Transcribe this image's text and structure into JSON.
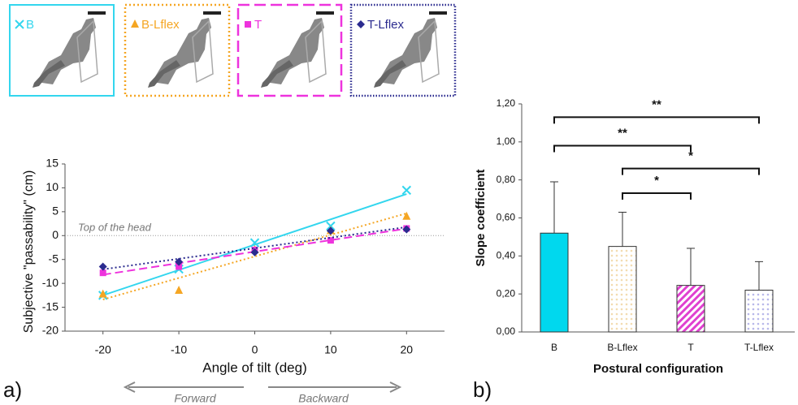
{
  "chart_data": [
    {
      "type": "scatter",
      "panel_label": "a)",
      "x": [
        -20,
        -10,
        0,
        10,
        20
      ],
      "series": [
        {
          "name": "B",
          "color": "#33d6ee",
          "marker": "x",
          "line_style": "solid",
          "values": [
            -12.5,
            -7,
            -1.5,
            2,
            9.5
          ]
        },
        {
          "name": "B-Lflex",
          "color": "#f5a623",
          "marker": "triangle",
          "line_style": "dotted",
          "values": [
            -12.3,
            -11.5,
            -3,
            1,
            4
          ]
        },
        {
          "name": "T",
          "color": "#ee33dd",
          "marker": "square",
          "line_style": "dashed",
          "values": [
            -7.8,
            -6.5,
            -3,
            -1,
            1.5
          ]
        },
        {
          "name": "T-Lflex",
          "color": "#2b2b8f",
          "marker": "diamond",
          "line_style": "dotted",
          "values": [
            -6.5,
            -5.5,
            -3.5,
            1,
            1.3
          ]
        }
      ],
      "xlim": [
        -25,
        25
      ],
      "xticks": [
        -20,
        -10,
        0,
        10,
        20
      ],
      "ylim": [
        -20,
        15
      ],
      "yticks": [
        -20,
        -15,
        -10,
        -5,
        0,
        5,
        10,
        15
      ],
      "xlabel": "Angle of tilt (deg)",
      "ylabel": "Subjective \"passability\" (cm)",
      "reference_line": {
        "value": 0,
        "label": "Top of the head"
      },
      "arrows": [
        "Forward",
        "Backward"
      ]
    },
    {
      "type": "bar",
      "panel_label": "b)",
      "categories": [
        "B",
        "B-Lflex",
        "T",
        "T-Lflex"
      ],
      "values": [
        0.52,
        0.45,
        0.245,
        0.22
      ],
      "errors": [
        0.27,
        0.18,
        0.195,
        0.15
      ],
      "colors": [
        "#00d8ee",
        "#f3dcb0",
        "#e040d0",
        "#b8b8ea"
      ],
      "fills": [
        "solid",
        "dots",
        "hatch",
        "dots"
      ],
      "ylim": [
        0,
        1.2
      ],
      "yticks": [
        {
          "value": 0,
          "label": "0,00"
        },
        {
          "value": 0.2,
          "label": "0,20"
        },
        {
          "value": 0.4,
          "label": "0,40"
        },
        {
          "value": 0.6,
          "label": "0,60"
        },
        {
          "value": 0.8,
          "label": "0,80"
        },
        {
          "value": 1,
          "label": "1,00"
        },
        {
          "value": 1.2,
          "label": "1,20"
        }
      ],
      "xlabel": "Postural configuration",
      "ylabel": "Slope coefficient",
      "brackets": [
        {
          "from": "B",
          "to": "T-Lflex",
          "y": 1.13,
          "label": "**"
        },
        {
          "from": "B",
          "to": "T",
          "y": 0.98,
          "label": "**"
        },
        {
          "from": "B-Lflex",
          "to": "T-Lflex",
          "y": 0.86,
          "label": "*"
        },
        {
          "from": "B-Lflex",
          "to": "T",
          "y": 0.73,
          "label": "*"
        }
      ]
    }
  ]
}
